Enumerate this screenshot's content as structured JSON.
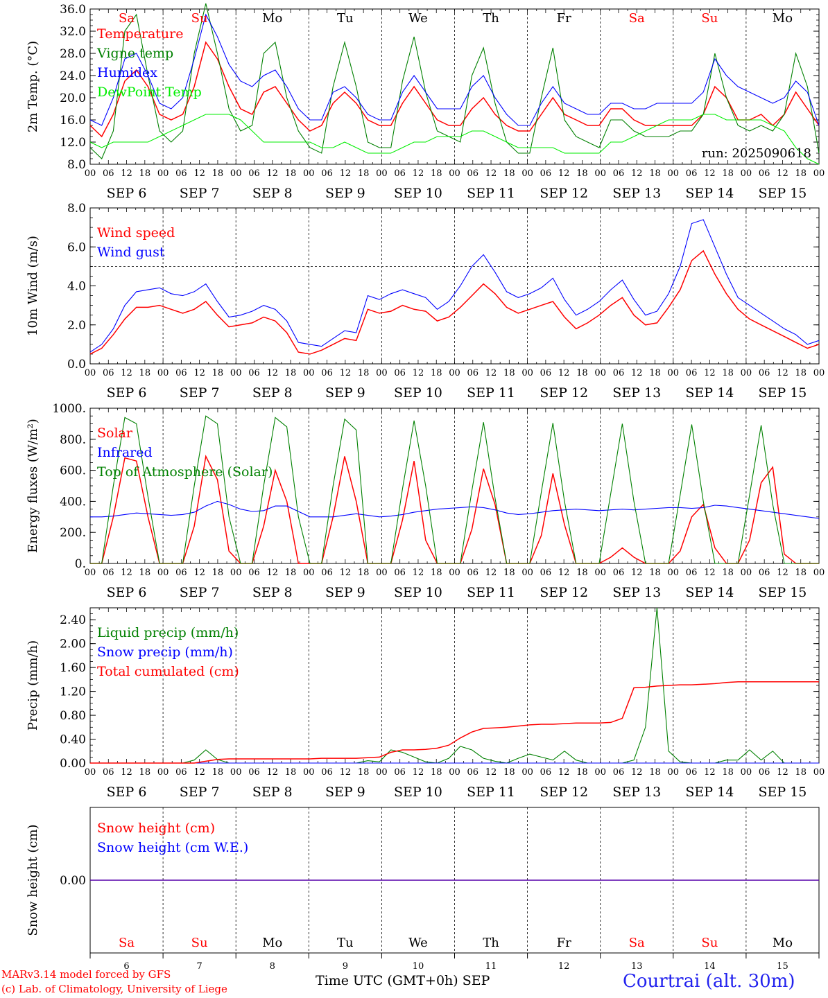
{
  "run_label": "run: 2025090618",
  "x_axis": {
    "hour_ticks": [
      "00",
      "06",
      "12",
      "18"
    ],
    "end_tick": "00",
    "month": "SEP",
    "days": [
      "6",
      "7",
      "8",
      "9",
      "10",
      "11",
      "12",
      "13",
      "14",
      "15"
    ],
    "weekdays": [
      "Sa",
      "Su",
      "Mo",
      "Tu",
      "We",
      "Th",
      "Fr",
      "Sa",
      "Su",
      "Mo"
    ],
    "weekend_flags": [
      true,
      true,
      false,
      false,
      false,
      false,
      false,
      true,
      true,
      false
    ],
    "title": "Time UTC (GMT+0h)",
    "title_month": "SEP"
  },
  "colors": {
    "red": "#ff0000",
    "green": "#008000",
    "blue": "#0000ff",
    "lime": "#00ee00",
    "weekend": "#ff0000",
    "station": "#2222ee"
  },
  "footer": {
    "model": "MARv3.14 model forced by GFS",
    "lab": "(c) Lab. of Climatology, University of Liege",
    "station": "Courtrai (alt. 30m)"
  },
  "chart_data": [
    {
      "type": "line",
      "ylabel": "2m Temp. (°C)",
      "ylim": [
        8,
        36
      ],
      "yticks": [
        "8.0",
        "12.0",
        "16.0",
        "20.0",
        "24.0",
        "28.0",
        "32.0",
        "36.0"
      ],
      "legend": [
        "Temperature",
        "Vigne temp",
        "Humidex",
        "DewPoint Temp"
      ],
      "series": [
        {
          "name": "Temperature",
          "color": "red",
          "values": [
            15,
            13,
            17,
            23,
            25,
            22,
            17,
            16,
            17,
            22,
            30,
            27,
            22,
            18,
            17,
            21,
            22,
            19,
            16,
            14,
            15,
            19,
            21,
            19,
            16,
            15,
            15,
            19,
            22,
            19,
            16,
            15,
            15,
            18,
            20,
            17,
            15,
            14,
            14,
            17,
            20,
            17,
            16,
            15,
            15,
            18,
            18,
            16,
            15,
            15,
            15,
            15,
            15,
            17,
            22,
            20,
            16,
            16,
            17,
            15,
            17,
            21,
            18,
            15
          ]
        },
        {
          "name": "Vigne temp",
          "color": "green",
          "values": [
            11,
            9,
            14,
            32,
            35,
            24,
            14,
            12,
            14,
            28,
            37,
            28,
            18,
            14,
            15,
            28,
            30,
            20,
            14,
            11,
            10,
            22,
            30,
            22,
            12,
            11,
            11,
            23,
            31,
            21,
            14,
            13,
            12,
            24,
            29,
            19,
            12,
            10,
            10,
            20,
            29,
            16,
            13,
            12,
            11,
            16,
            16,
            14,
            13,
            13,
            13,
            14,
            14,
            17,
            28,
            20,
            15,
            14,
            15,
            14,
            17,
            28,
            22,
            10
          ]
        },
        {
          "name": "Humidex",
          "color": "blue",
          "values": [
            16,
            15,
            20,
            27,
            28,
            24,
            19,
            18,
            20,
            27,
            35,
            31,
            26,
            23,
            22,
            24,
            25,
            22,
            18,
            16,
            16,
            21,
            22,
            20,
            17,
            16,
            16,
            21,
            24,
            21,
            18,
            18,
            18,
            22,
            24,
            20,
            17,
            15,
            15,
            19,
            22,
            19,
            18,
            17,
            17,
            19,
            19,
            18,
            18,
            19,
            19,
            19,
            19,
            21,
            27,
            24,
            22,
            21,
            20,
            19,
            20,
            23,
            21,
            15
          ]
        },
        {
          "name": "DewPoint Temp",
          "color": "lime",
          "values": [
            12,
            11,
            12,
            12,
            12,
            12,
            13,
            14,
            15,
            16,
            17,
            17,
            17,
            16,
            14,
            12,
            12,
            12,
            12,
            12,
            11,
            11,
            12,
            11,
            10,
            10,
            10,
            11,
            12,
            12,
            13,
            13,
            13,
            14,
            14,
            13,
            12,
            11,
            11,
            11,
            11,
            10,
            10,
            10,
            10,
            12,
            12,
            13,
            14,
            15,
            16,
            16,
            16,
            17,
            17,
            16,
            16,
            16,
            16,
            15,
            14,
            11,
            9,
            8
          ]
        }
      ]
    },
    {
      "type": "line",
      "ylabel": "10m Wind (m/s)",
      "ylim": [
        0,
        8
      ],
      "yticks": [
        "0.0",
        "2.0",
        "4.0",
        "6.0",
        "8.0"
      ],
      "reference_line": 5,
      "legend": [
        "Wind speed",
        "Wind gust"
      ],
      "series": [
        {
          "name": "Wind speed",
          "color": "red",
          "values": [
            0.5,
            0.8,
            1.5,
            2.3,
            2.9,
            2.9,
            3.0,
            2.8,
            2.6,
            2.8,
            3.2,
            2.5,
            1.9,
            2.0,
            2.1,
            2.4,
            2.2,
            1.6,
            0.6,
            0.5,
            0.7,
            1.0,
            1.3,
            1.2,
            2.8,
            2.6,
            2.7,
            3.0,
            2.8,
            2.7,
            2.2,
            2.4,
            2.9,
            3.5,
            4.1,
            3.6,
            2.9,
            2.6,
            2.8,
            3.0,
            3.2,
            2.4,
            1.8,
            2.1,
            2.5,
            3.0,
            3.4,
            2.5,
            2.0,
            2.1,
            2.9,
            3.8,
            5.3,
            5.8,
            4.6,
            3.6,
            2.8,
            2.3,
            2.0,
            1.7,
            1.4,
            1.1,
            0.8,
            1.0
          ]
        },
        {
          "name": "Wind gust",
          "color": "blue",
          "values": [
            0.6,
            1.0,
            1.8,
            3.0,
            3.7,
            3.8,
            3.9,
            3.6,
            3.5,
            3.7,
            4.1,
            3.2,
            2.4,
            2.5,
            2.7,
            3.0,
            2.8,
            2.2,
            1.1,
            1.0,
            0.9,
            1.3,
            1.7,
            1.6,
            3.5,
            3.3,
            3.6,
            3.8,
            3.6,
            3.4,
            2.8,
            3.2,
            4.0,
            5.0,
            5.6,
            4.7,
            3.7,
            3.4,
            3.6,
            3.9,
            4.4,
            3.3,
            2.5,
            2.8,
            3.2,
            3.8,
            4.3,
            3.3,
            2.5,
            2.7,
            3.6,
            5.0,
            7.2,
            7.4,
            6.0,
            4.6,
            3.4,
            3.0,
            2.6,
            2.2,
            1.8,
            1.5,
            1.0,
            1.2
          ]
        }
      ]
    },
    {
      "type": "line",
      "ylabel": "Energy fluxes (W/m²)",
      "ylim": [
        0,
        1000
      ],
      "yticks": [
        "0.",
        "200.",
        "400.",
        "600.",
        "800.",
        "1000."
      ],
      "legend": [
        "Solar",
        "Infrared",
        "Top of Atmosphere (Solar)"
      ],
      "series": [
        {
          "name": "Solar",
          "color": "red",
          "values": [
            0,
            0,
            300,
            680,
            660,
            300,
            0,
            0,
            0,
            240,
            690,
            540,
            80,
            0,
            0,
            240,
            600,
            400,
            0,
            0,
            0,
            300,
            690,
            400,
            0,
            0,
            0,
            280,
            660,
            150,
            0,
            0,
            0,
            220,
            610,
            380,
            0,
            0,
            0,
            180,
            580,
            250,
            0,
            0,
            0,
            40,
            100,
            40,
            0,
            0,
            0,
            80,
            300,
            380,
            100,
            0,
            0,
            150,
            520,
            620,
            60,
            0,
            0,
            0
          ]
        },
        {
          "name": "Infrared",
          "color": "blue",
          "values": [
            300,
            300,
            305,
            315,
            325,
            320,
            315,
            310,
            315,
            330,
            370,
            400,
            380,
            350,
            335,
            340,
            370,
            370,
            335,
            300,
            300,
            300,
            310,
            320,
            310,
            300,
            305,
            315,
            330,
            340,
            350,
            355,
            360,
            365,
            360,
            345,
            325,
            315,
            320,
            330,
            340,
            345,
            350,
            345,
            340,
            345,
            350,
            345,
            350,
            355,
            360,
            360,
            355,
            360,
            375,
            370,
            360,
            350,
            340,
            330,
            320,
            310,
            300,
            290
          ]
        },
        {
          "name": "Top of Atmosphere (Solar)",
          "color": "green",
          "values": [
            0,
            0,
            500,
            940,
            900,
            430,
            0,
            0,
            0,
            500,
            950,
            900,
            300,
            0,
            0,
            500,
            940,
            880,
            300,
            0,
            0,
            500,
            930,
            860,
            0,
            0,
            0,
            480,
            920,
            500,
            0,
            0,
            0,
            470,
            910,
            420,
            0,
            0,
            0,
            460,
            905,
            400,
            0,
            0,
            0,
            450,
            900,
            400,
            0,
            0,
            0,
            440,
            895,
            400,
            0,
            0,
            0,
            440,
            890,
            380,
            0,
            0,
            0,
            0
          ]
        }
      ]
    },
    {
      "type": "line",
      "ylabel": "Precip (mm/h)",
      "ylim": [
        0,
        2.6
      ],
      "yticks": [
        "0.00",
        "0.40",
        "0.80",
        "1.20",
        "1.60",
        "2.00",
        "2.40"
      ],
      "legend": [
        "Liquid precip (mm/h)",
        "Snow precip (mm/h)",
        "Total cumulated (cm)"
      ],
      "series": [
        {
          "name": "Liquid precip (mm/h)",
          "color": "green",
          "values": [
            0,
            0,
            0,
            0,
            0,
            0,
            0,
            0,
            0,
            0.05,
            0.22,
            0.06,
            0,
            0,
            0,
            0,
            0,
            0,
            0,
            0,
            0,
            0,
            0,
            0,
            0.04,
            0.02,
            0.22,
            0.18,
            0.1,
            0.02,
            0,
            0.08,
            0.28,
            0.22,
            0.08,
            0.03,
            0,
            0.08,
            0.15,
            0.1,
            0.05,
            0.2,
            0.05,
            0,
            0,
            0,
            0,
            0.05,
            0.6,
            2.6,
            0.2,
            0.02,
            0,
            0,
            0,
            0.05,
            0.05,
            0.22,
            0.05,
            0.2,
            0,
            0,
            0,
            0
          ]
        },
        {
          "name": "Snow precip (mm/h)",
          "color": "blue",
          "values": [
            0,
            0,
            0,
            0,
            0,
            0,
            0,
            0,
            0,
            0,
            0,
            0,
            0,
            0,
            0,
            0,
            0,
            0,
            0,
            0,
            0,
            0,
            0,
            0,
            0,
            0,
            0,
            0,
            0,
            0,
            0,
            0,
            0,
            0,
            0,
            0,
            0,
            0,
            0,
            0,
            0,
            0,
            0,
            0,
            0,
            0,
            0,
            0,
            0,
            0,
            0,
            0,
            0,
            0,
            0,
            0,
            0,
            0,
            0,
            0,
            0,
            0,
            0,
            0
          ]
        },
        {
          "name": "Total cumulated (cm)",
          "color": "red",
          "values": [
            0,
            0,
            0,
            0,
            0,
            0,
            0,
            0,
            0,
            0,
            0.03,
            0.06,
            0.07,
            0.07,
            0.07,
            0.07,
            0.07,
            0.07,
            0.07,
            0.07,
            0.08,
            0.08,
            0.08,
            0.08,
            0.09,
            0.1,
            0.18,
            0.22,
            0.22,
            0.23,
            0.25,
            0.3,
            0.42,
            0.52,
            0.58,
            0.59,
            0.6,
            0.62,
            0.64,
            0.65,
            0.65,
            0.66,
            0.67,
            0.67,
            0.67,
            0.68,
            0.75,
            1.26,
            1.27,
            1.29,
            1.3,
            1.31,
            1.31,
            1.32,
            1.33,
            1.35,
            1.36,
            1.36,
            1.36,
            1.36,
            1.36,
            1.36,
            1.36,
            1.36
          ]
        }
      ]
    },
    {
      "type": "line",
      "ylabel": "Snow height (cm)",
      "ylim": [
        -1,
        1
      ],
      "yticks": [
        "0.00"
      ],
      "legend": [
        "Snow height (cm)",
        "Snow height (cm W.E.)"
      ],
      "series": [
        {
          "name": "Snow height (cm)",
          "color": "red",
          "values": [
            0,
            0
          ]
        },
        {
          "name": "Snow height (cm W.E.)",
          "color": "blue",
          "values": [
            0,
            0
          ]
        }
      ]
    }
  ]
}
